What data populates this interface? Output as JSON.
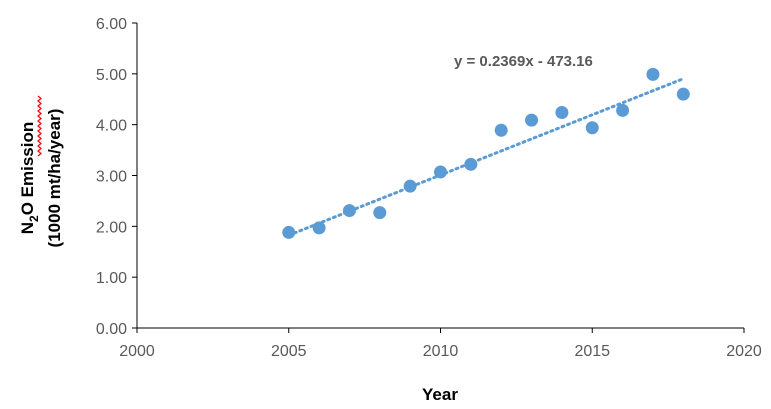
{
  "chart_data": {
    "type": "scatter",
    "xlabel": "Year",
    "ylabel": {
      "line1_prefix": "N",
      "line1_sub": "2",
      "line1_suffix": "O Emission",
      "line2": "(1000 mt/ha/year)"
    },
    "xlim": [
      2000,
      2020
    ],
    "ylim": [
      0,
      6
    ],
    "x_ticks": [
      "2000",
      "2005",
      "2010",
      "2015",
      "2020"
    ],
    "y_ticks": [
      "0.00",
      "1.00",
      "2.00",
      "3.00",
      "4.00",
      "5.00",
      "6.00"
    ],
    "grid": false,
    "series": [
      {
        "x": [
          2005,
          2006,
          2007,
          2008,
          2009,
          2010,
          2011,
          2012,
          2013,
          2014,
          2015,
          2016,
          2017,
          2018
        ],
        "y": [
          1.88,
          1.97,
          2.31,
          2.27,
          2.79,
          3.07,
          3.22,
          3.89,
          4.09,
          4.24,
          3.94,
          4.28,
          4.99,
          4.6
        ]
      }
    ],
    "trendline": {
      "type": "linear",
      "slope": 0.2369,
      "intercept": -473.16,
      "x_range": [
        2005,
        2018
      ],
      "equation_label": "y = 0.2369x - 473.16"
    },
    "colors": {
      "marker": "#5B9BD5",
      "trendline": "#5B9BD5",
      "axis": "#000000",
      "tick_text": "#595959",
      "spellcheck": "#ff0000"
    }
  }
}
